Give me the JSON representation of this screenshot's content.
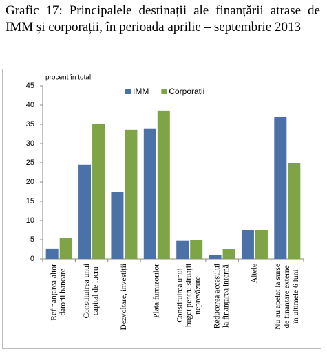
{
  "chart_data": {
    "type": "bar",
    "title": "Grafic 17: Principalele destinații ale finanțării atrase de IMM și corporații, în perioada aprilie – septembrie 2013",
    "ylabel": "procent în total",
    "categories": [
      "Refinanțarea altor\ndatorii bancare",
      "Constituirea unui\ncapital de lucru",
      "Dezvoltare, investiții",
      "Plata furnizorilor",
      "Constituirea unui\nbuget pentru situații\nneprevăzute",
      "Reducerea accesului\nla finanțarea internă",
      "Altele",
      "Nu au apelat la surse\nde finanțare externe\nîn ultimele 6 luni"
    ],
    "series": [
      {
        "name": "IMM",
        "color": "#4a72a8",
        "values": [
          2.7,
          24.5,
          17.5,
          33.8,
          4.7,
          0.9,
          7.5,
          36.8
        ]
      },
      {
        "name": "Corporații",
        "color": "#7fa446",
        "values": [
          5.4,
          35,
          33.6,
          38.6,
          5,
          2.6,
          7.5,
          25
        ]
      }
    ],
    "ylim": [
      0,
      45
    ],
    "yticks": [
      0,
      5,
      10,
      15,
      20,
      25,
      30,
      35,
      40,
      45
    ],
    "grid": false,
    "legend": "top"
  }
}
